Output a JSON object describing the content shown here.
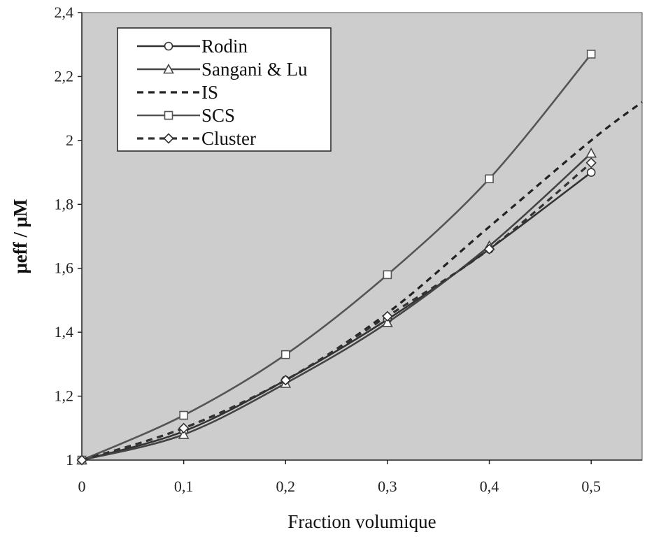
{
  "chart_data": {
    "type": "line",
    "xlabel": "Fraction volumique",
    "ylabel": "μeff / μM",
    "xlim": [
      0,
      0.55
    ],
    "ylim": [
      1,
      2.4
    ],
    "x_ticks": [
      "0",
      "0,1",
      "0,2",
      "0,3",
      "0,4",
      "0,5"
    ],
    "y_ticks": [
      "1",
      "1,2",
      "1,4",
      "1,6",
      "1,8",
      "2",
      "2,2",
      "2,4"
    ],
    "legend_position": "top-left",
    "grid": false,
    "background_color": "#cdcdcd",
    "series": [
      {
        "name": "Rodin",
        "style": "solid",
        "marker": "circle",
        "color": "#333333",
        "x": [
          0,
          0.1,
          0.2,
          0.3,
          0.4,
          0.5
        ],
        "values": [
          1.0,
          1.09,
          1.25,
          1.44,
          1.66,
          1.9
        ]
      },
      {
        "name": "Sangani & Lu",
        "style": "solid",
        "marker": "triangle",
        "color": "#444444",
        "x": [
          0,
          0.1,
          0.2,
          0.3,
          0.4,
          0.5
        ],
        "values": [
          1.0,
          1.08,
          1.24,
          1.43,
          1.67,
          1.96
        ]
      },
      {
        "name": "IS",
        "style": "dashed",
        "marker": "none",
        "color": "#222222",
        "x": [
          0,
          0.1,
          0.2,
          0.3,
          0.4,
          0.5,
          0.55
        ],
        "values": [
          1.0,
          1.1,
          1.25,
          1.46,
          1.73,
          2.0,
          2.12
        ]
      },
      {
        "name": "SCS",
        "style": "solid",
        "marker": "square",
        "color": "#555555",
        "x": [
          0,
          0.1,
          0.2,
          0.3,
          0.4,
          0.5
        ],
        "values": [
          1.0,
          1.14,
          1.33,
          1.58,
          1.88,
          2.27
        ]
      },
      {
        "name": "Cluster",
        "style": "dashed",
        "marker": "diamond",
        "color": "#333333",
        "x": [
          0,
          0.1,
          0.2,
          0.3,
          0.4,
          0.5
        ],
        "values": [
          1.0,
          1.1,
          1.25,
          1.45,
          1.66,
          1.93
        ]
      }
    ]
  }
}
